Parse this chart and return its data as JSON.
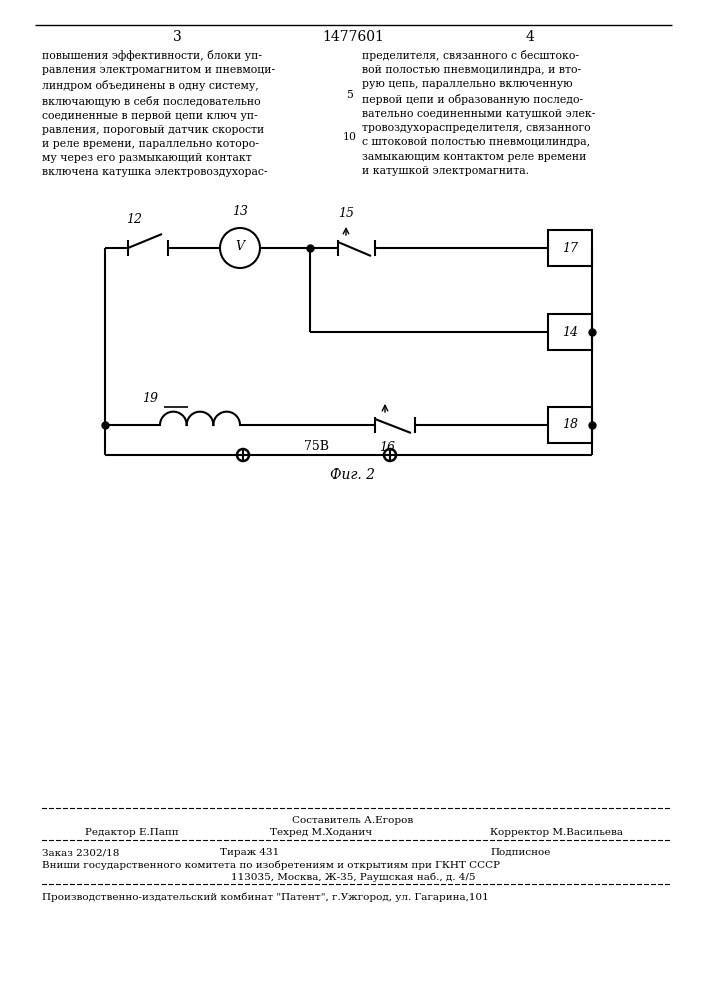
{
  "page_num_left": "3",
  "page_num_center": "1477601",
  "page_num_right": "4",
  "text_left": "повышения эффективности, блоки уп-\nравления электромагнитом и пневмоци-\nлиндром объединены в одну систему,\nвключающую в себя последовательно\nсоединенные в первой цепи ключ уп-\nравления, пороговый датчик скорости\nи реле времени, параллельно которо-\nму через его размыкающий контакт\nвключена катушка электровоздухорас-",
  "text_right": "пределителя, связанного с бесштоко-\nвой полостью пневмоцилиндра, и вто-\nрую цепь, параллельно включенную\nпервой цепи и образованную последо-\nвательно соединенными катушкой элек-\nтровоздухораспределителя, связанного\nс штоковой полостью пневмоцилиндра,\nзамыкающим контактом реле времени\nи катушкой электромагнита.",
  "fig_caption": "Фиг. 2",
  "footer_editor": "Редактор Е.Папп",
  "footer_composer_title": "Составитель А.Егоров",
  "footer_tech": "Техред М.Ходанич",
  "footer_corrector": "Корректор М.Васильева",
  "footer_order": "Заказ 2302/18",
  "footer_print": "Тираж 431",
  "footer_sub": "Подписное",
  "footer_vniishi": "Вниши государственного комитета по изобретениям и открытиям при ГКНТ СССР",
  "footer_addr": "113035, Москва, Ж-35, Раушская наб., д. 4/5",
  "footer_plant": "Производственно-издательский комбинат \"Патент\", г.Ужгород, ул. Гагарина,101"
}
